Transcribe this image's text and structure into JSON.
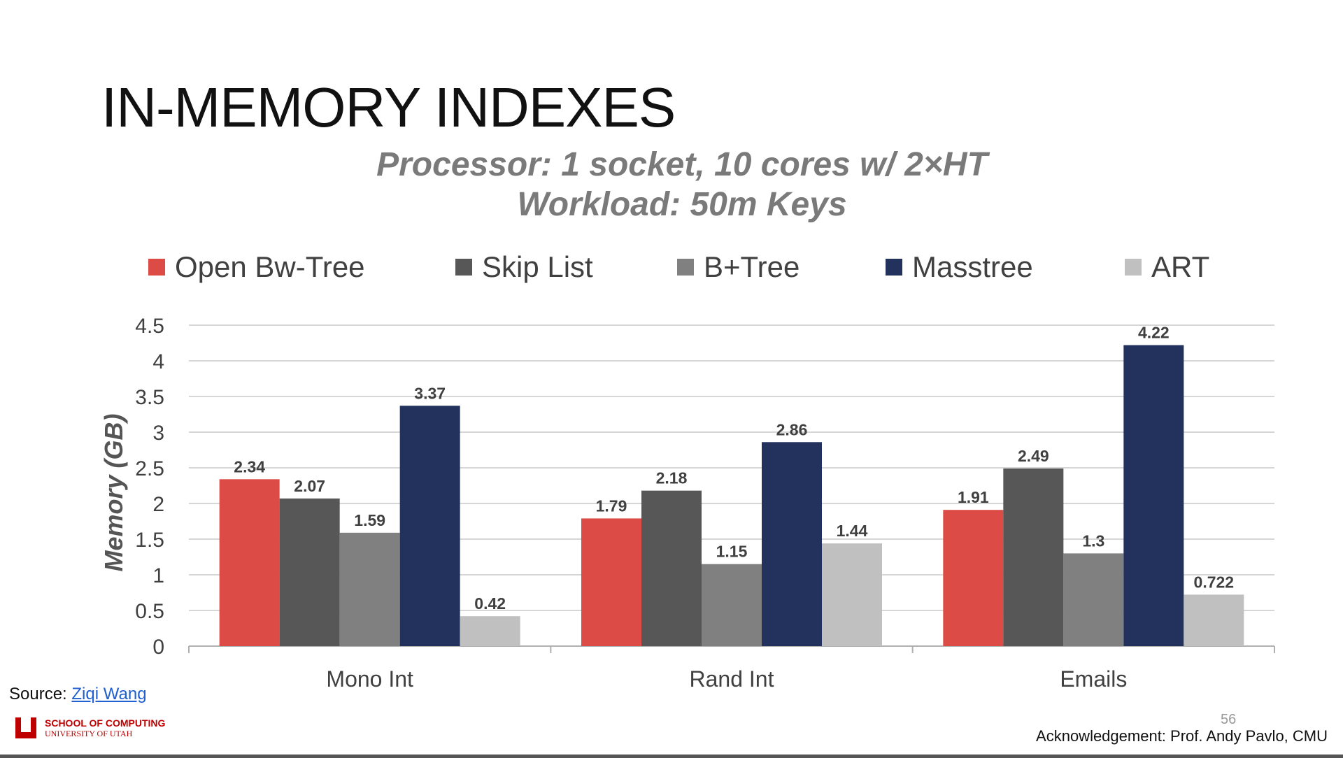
{
  "slide": {
    "title": "IN-MEMORY INDEXES",
    "subtitle_line1": "Processor: 1 socket, 10 cores w/ 2×HT",
    "subtitle_line2": "Workload: 50m Keys",
    "source_label": "Source:",
    "source_link": "Ziqi Wang",
    "logo_line1": "SCHOOL OF COMPUTING",
    "logo_line2": "UNIVERSITY OF UTAH",
    "page_number": "56",
    "acknowledgement": "Acknowledgement: Prof. Andy Pavlo, CMU"
  },
  "chart_data": {
    "type": "bar",
    "title": "",
    "xlabel": "",
    "ylabel": "Memory (GB)",
    "ylim": [
      0,
      4.5
    ],
    "yticks": [
      0,
      0.5,
      1,
      1.5,
      2,
      2.5,
      3,
      3.5,
      4,
      4.5
    ],
    "ytick_labels": [
      "0",
      "0.5",
      "1",
      "1.5",
      "2",
      "2.5",
      "3",
      "3.5",
      "4",
      "4.5"
    ],
    "grid": true,
    "legend_position": "top",
    "categories": [
      "Mono Int",
      "Rand Int",
      "Emails"
    ],
    "series": [
      {
        "name": "Open Bw-Tree",
        "color": "#dd4b47",
        "values": [
          2.34,
          1.79,
          1.91
        ],
        "labels": [
          "2.34",
          "1.79",
          "1.91"
        ]
      },
      {
        "name": "Skip List",
        "color": "#575757",
        "values": [
          2.07,
          2.18,
          2.49
        ],
        "labels": [
          "2.07",
          "2.18",
          "2.49"
        ]
      },
      {
        "name": "B+Tree",
        "color": "#808080",
        "values": [
          1.59,
          1.15,
          1.3
        ],
        "labels": [
          "1.59",
          "1.15",
          "1.3"
        ]
      },
      {
        "name": "Masstree",
        "color": "#22325c",
        "values": [
          3.37,
          2.86,
          4.22
        ],
        "labels": [
          "3.37",
          "2.86",
          "4.22"
        ]
      },
      {
        "name": "ART",
        "color": "#c0c0c0",
        "values": [
          0.42,
          1.44,
          0.722
        ],
        "labels": [
          "0.42",
          "1.44",
          "0.722"
        ]
      }
    ]
  }
}
